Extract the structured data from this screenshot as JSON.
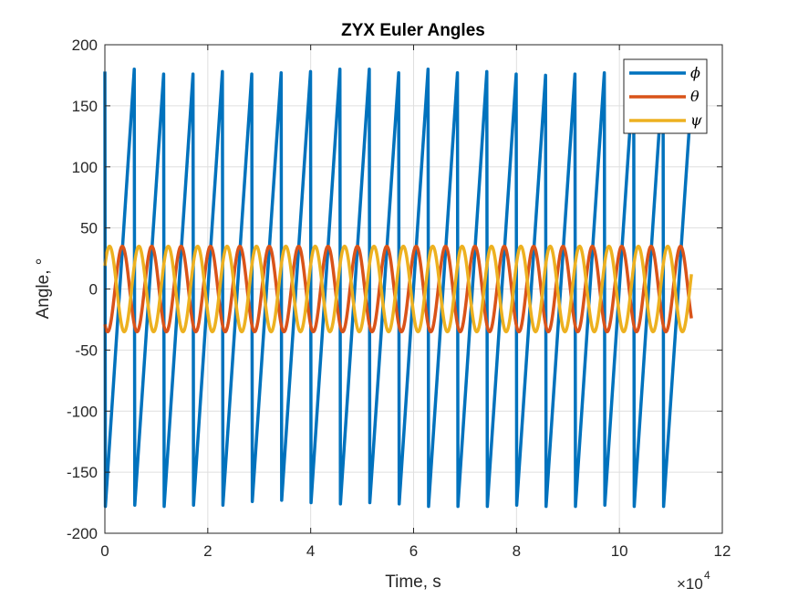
{
  "chart_data": {
    "type": "line",
    "title": "ZYX Euler Angles",
    "xlabel": "Time, s",
    "ylabel": "Angle, °",
    "xlim": [
      0,
      12
    ],
    "ylim": [
      -200,
      200
    ],
    "x_multiplier_label": "×10",
    "x_multiplier_exponent": "4",
    "x_ticks": [
      0,
      2,
      4,
      6,
      8,
      10,
      12
    ],
    "x_tick_labels": [
      "0",
      "2",
      "4",
      "6",
      "8",
      "10",
      "12"
    ],
    "y_ticks": [
      -200,
      -150,
      -100,
      -50,
      0,
      50,
      100,
      150,
      200
    ],
    "y_tick_labels": [
      "-200",
      "-150",
      "-100",
      "-50",
      "0",
      "50",
      "100",
      "150",
      "200"
    ],
    "grid": true,
    "legend_position": "top-right",
    "series": [
      {
        "name": "ϕ",
        "color": "#0072BD",
        "kind": "sawtooth",
        "x_start": 0,
        "x_end": 11.4,
        "period": 0.571,
        "start_value": 178,
        "low_value": -178,
        "peak_values": [
          180,
          176,
          176,
          178,
          176,
          177,
          178,
          180,
          180,
          177,
          180,
          177,
          178,
          176,
          175,
          176,
          177,
          177,
          178,
          176
        ],
        "trough_values": [
          -177,
          -178,
          -177,
          -177,
          -174,
          -173,
          -175,
          -176,
          -175,
          -176,
          -178,
          -178,
          -178,
          -177,
          -178,
          -178,
          -177,
          -178,
          -178
        ],
        "end_value": 140
      },
      {
        "name": "θ",
        "color": "#D95319",
        "kind": "sinusoid",
        "x_start": 0,
        "x_end": 11.4,
        "amplitude": 35,
        "period": 0.571,
        "start_value": -29,
        "end_value": -29
      },
      {
        "name": "ψ",
        "color": "#EDB120",
        "kind": "sinusoid",
        "x_start": 0,
        "x_end": 11.4,
        "amplitude": 35,
        "period": 0.571,
        "start_value": 19,
        "end_value": 18
      }
    ]
  }
}
